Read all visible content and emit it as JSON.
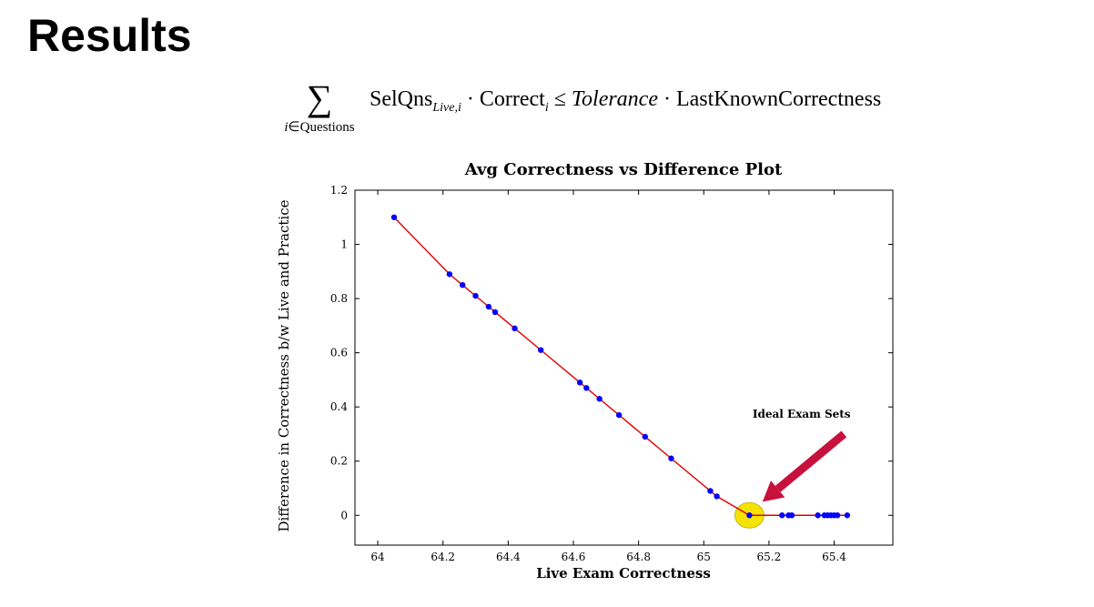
{
  "slide": {
    "title": "Results"
  },
  "formula": {
    "sum_symbol": "∑",
    "sum_index_var": "i",
    "sum_index_op": "∈",
    "sum_index_set": "Questions",
    "term1": "SelQns",
    "term1_sub": "Live,i",
    "dot1": "·",
    "term2": "Correct",
    "term2_sub": "i",
    "leq": "≤",
    "term3": "Tolerance",
    "dot2": "·",
    "term4": "LastKnownCorrectness"
  },
  "chart_data": {
    "type": "line",
    "title": "Avg Correctness vs Difference Plot",
    "xlabel": "Live Exam Correctness",
    "ylabel": "Difference in Correctness b/w Live and Practice",
    "xlim": [
      63.93,
      65.58
    ],
    "ylim": [
      -0.11,
      1.2
    ],
    "xticks": [
      64,
      64.2,
      64.4,
      64.6,
      64.8,
      65,
      65.2,
      65.4
    ],
    "yticks": [
      0,
      0.2,
      0.4,
      0.6,
      0.8,
      1,
      1.2
    ],
    "grid": false,
    "line_color": "#e00000",
    "marker_color": "#0000ff",
    "series": [
      {
        "x": [
          64.05,
          64.22,
          64.26,
          64.3,
          64.34,
          64.36,
          64.42,
          64.5,
          64.62,
          64.64,
          64.68,
          64.74,
          64.82,
          64.9,
          65.02,
          65.04,
          65.14,
          65.24,
          65.26,
          65.27,
          65.35,
          65.37,
          65.38,
          65.39,
          65.4,
          65.41,
          65.44
        ],
        "y": [
          1.1,
          0.89,
          0.85,
          0.81,
          0.77,
          0.75,
          0.69,
          0.61,
          0.49,
          0.47,
          0.43,
          0.37,
          0.29,
          0.21,
          0.09,
          0.07,
          0,
          0,
          0,
          0,
          0,
          0,
          0,
          0,
          0,
          0,
          0
        ]
      }
    ],
    "highlight": {
      "x": 65.14,
      "y": 0,
      "color": "#f5e400"
    },
    "annotation": {
      "text": "Ideal Exam Sets",
      "text_x": 65.3,
      "text_y": 0.36,
      "arrow_from": [
        65.43,
        0.3
      ],
      "arrow_to": [
        65.18,
        0.05
      ],
      "arrow_color": "#c8103c"
    }
  }
}
